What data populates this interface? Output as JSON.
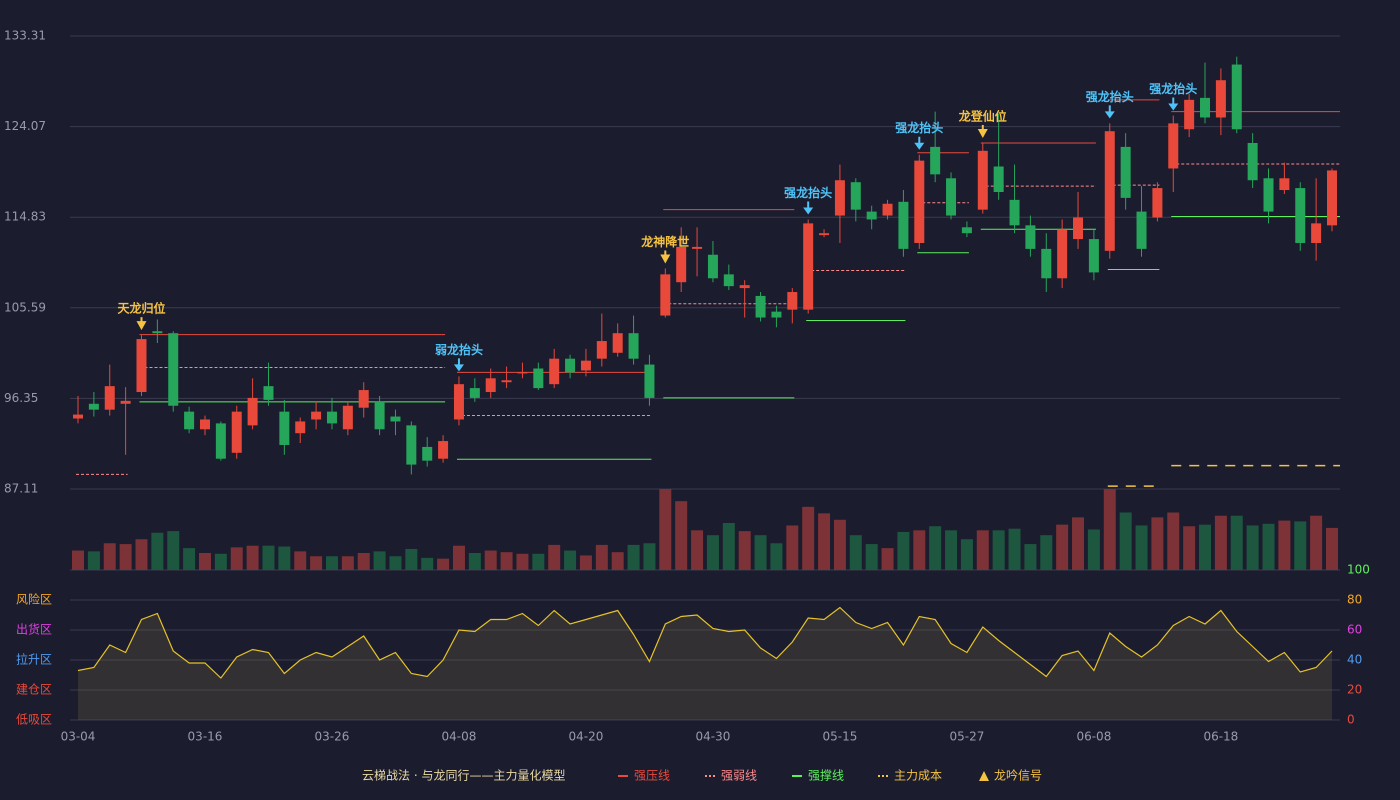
{
  "chart_data": {
    "type": "candlestick",
    "categories": [
      "03-04",
      null,
      null,
      null,
      null,
      null,
      null,
      null,
      "03-16",
      null,
      null,
      null,
      null,
      null,
      null,
      null,
      "03-26",
      null,
      null,
      null,
      null,
      null,
      null,
      null,
      "04-08",
      null,
      null,
      null,
      null,
      null,
      null,
      null,
      "04-20",
      null,
      null,
      null,
      null,
      null,
      null,
      null,
      "04-30",
      null,
      null,
      null,
      null,
      null,
      null,
      null,
      "05-15",
      null,
      null,
      null,
      null,
      null,
      null,
      null,
      "05-27",
      null,
      null,
      null,
      null,
      null,
      null,
      null,
      "06-08",
      null,
      null,
      null,
      null,
      null,
      null,
      null,
      "06-18",
      null,
      null,
      null,
      null,
      null,
      null,
      null
    ],
    "open": [
      94.3,
      95.8,
      95.2,
      95.8,
      97,
      103.2,
      103,
      95,
      93.2,
      93.8,
      90.8,
      93.6,
      97.6,
      95,
      92.8,
      94.2,
      95,
      93.2,
      95.4,
      96,
      94.5,
      93.6,
      91.4,
      90.2,
      94.2,
      97.4,
      97,
      98,
      98.9,
      99.4,
      97.8,
      100.4,
      99.2,
      100.4,
      101,
      103,
      99.8,
      104.8,
      108.2,
      111.6,
      111,
      109,
      107.6,
      106.8,
      105.2,
      105.4,
      105.4,
      113,
      115,
      118.4,
      115.4,
      115,
      116.4,
      112.2,
      122,
      118.8,
      113.8,
      115.6,
      120,
      116.6,
      114,
      111.6,
      108.6,
      112.6,
      112.6,
      111.4,
      122,
      115.4,
      114.8,
      119.8,
      123.8,
      127,
      125,
      130.4,
      122.4,
      118.8,
      117.6,
      117.8,
      112.2,
      114
    ],
    "high": [
      96.6,
      97,
      99.8,
      97.5,
      102.8,
      104.4,
      103.2,
      95.5,
      94.6,
      94,
      95.6,
      98.4,
      100,
      96.2,
      94.4,
      96,
      96.4,
      96,
      98,
      96.6,
      95.2,
      94,
      92.4,
      92.6,
      98.6,
      98.4,
      99.4,
      99.6,
      100,
      100,
      101.4,
      100.8,
      101.4,
      105,
      104,
      104.8,
      100.8,
      109.6,
      113.8,
      113.8,
      112.4,
      110,
      108.4,
      107.2,
      105.8,
      107.6,
      114.6,
      113.6,
      120.2,
      118.8,
      116,
      116.6,
      117.6,
      121.2,
      125.6,
      119.4,
      114.4,
      122.4,
      125.4,
      120.2,
      115,
      113.2,
      114.6,
      117.4,
      113.6,
      124.4,
      123.4,
      118,
      118.4,
      125.2,
      127.4,
      130.6,
      130,
      131.2,
      123.4,
      119.8,
      120.4,
      118.4,
      118.8,
      119.8
    ],
    "low": [
      93.8,
      94.5,
      94.6,
      90.6,
      96.6,
      102,
      95,
      92.8,
      92.6,
      90,
      90.2,
      93.2,
      95.6,
      90.6,
      91.8,
      93.2,
      93.2,
      92.6,
      94.4,
      92.6,
      92.6,
      88.6,
      89.4,
      89.8,
      93.6,
      96,
      96.4,
      97.4,
      98.4,
      97.2,
      97.4,
      98.4,
      98.6,
      99.6,
      100.6,
      99.8,
      95.6,
      104.6,
      107.2,
      108.8,
      108.2,
      107.4,
      104.6,
      104.2,
      103.6,
      104,
      105,
      112.8,
      112.2,
      114.4,
      113.6,
      114.6,
      110.8,
      111.6,
      118.4,
      114.6,
      112.8,
      115.2,
      116.6,
      113.2,
      110.8,
      107.2,
      107.6,
      111.6,
      108.4,
      110.6,
      115.6,
      110.8,
      114.4,
      117.4,
      123,
      124.4,
      123.2,
      123.4,
      117.8,
      114.2,
      117.2,
      111.4,
      110.4,
      113.4
    ],
    "close": [
      94.7,
      95.2,
      97.6,
      96.1,
      102.4,
      103,
      95.6,
      93.2,
      94.2,
      90.2,
      95,
      96.4,
      96.2,
      91.6,
      94,
      95,
      93.8,
      95.6,
      97.2,
      93.2,
      94,
      89.6,
      90,
      92,
      97.8,
      96.4,
      98.4,
      98.2,
      99,
      97.4,
      100.4,
      99,
      100.2,
      102.2,
      103,
      100.4,
      96.4,
      109,
      111.8,
      111.8,
      108.6,
      107.8,
      107.9,
      104.6,
      104.6,
      107.2,
      114.2,
      113.2,
      118.6,
      115.6,
      114.6,
      116.2,
      111.6,
      120.6,
      119.2,
      115,
      113.2,
      121.6,
      117.4,
      114,
      111.6,
      108.6,
      113.6,
      114.8,
      109.2,
      123.6,
      116.8,
      111.6,
      117.8,
      124.4,
      126.8,
      125,
      128.8,
      123.8,
      118.6,
      115.4,
      118.8,
      112.2,
      114.2,
      119.6
    ],
    "up_color": "#e8493a",
    "down_color": "#26a65b",
    "ylim": [
      87.11,
      133.31
    ],
    "yticks": [
      87.11,
      96.35,
      105.59,
      114.83,
      124.07,
      133.31
    ],
    "volume": {
      "vlim": [
        0,
        100
      ],
      "up_color": "#7c3236",
      "down_color": "#1e5740",
      "values": [
        24,
        23,
        33,
        32,
        38,
        46,
        48,
        27,
        21,
        20,
        28,
        30,
        30,
        29,
        23,
        17,
        17,
        17,
        21,
        23,
        17,
        26,
        15,
        14,
        30,
        21,
        24,
        22,
        20,
        20,
        31,
        24,
        18,
        31,
        22,
        31,
        33,
        100,
        85,
        49,
        43,
        58,
        48,
        43,
        33,
        55,
        78,
        70,
        62,
        43,
        32,
        27,
        47,
        49,
        54,
        49,
        38,
        49,
        49,
        51,
        32,
        43,
        56,
        65,
        50,
        100,
        71,
        55,
        65,
        71,
        54,
        56,
        67,
        67,
        55,
        57,
        61,
        60,
        67,
        52
      ]
    },
    "indicator": {
      "color": "#e6c229",
      "y2lim": [
        0,
        100
      ],
      "y2ticks": [
        0,
        20,
        40,
        60,
        80,
        100
      ],
      "y2tick_colors": [
        "#e84a3c",
        "#e84a3c",
        "#4f9cf0",
        "#e040e0",
        "#f5a623",
        "#5df05d"
      ],
      "zones": [
        {
          "value": 80,
          "label": "风险区",
          "color": "#f5a623"
        },
        {
          "value": 60,
          "label": "出货区",
          "color": "#e040e0"
        },
        {
          "value": 40,
          "label": "拉升区",
          "color": "#4f9cf0"
        },
        {
          "value": 20,
          "label": "建仓区",
          "color": "#e84a3c"
        },
        {
          "value": 0,
          "label": "低吸区",
          "color": "#e84a3c"
        }
      ],
      "values": [
        33,
        35,
        50,
        45,
        67,
        71,
        46,
        38,
        38,
        28,
        42,
        47,
        45,
        31,
        40,
        45,
        42,
        49,
        56,
        40,
        45,
        31,
        29,
        40,
        60,
        59,
        67,
        67,
        71,
        63,
        73,
        64,
        67,
        70,
        73,
        57,
        39,
        64,
        69,
        70,
        61,
        59,
        60,
        48,
        41,
        52,
        68,
        67,
        75,
        65,
        61,
        65,
        50,
        69,
        67,
        51,
        45,
        62,
        53,
        45,
        37,
        29,
        43,
        46,
        33,
        58,
        49,
        42,
        50,
        63,
        69,
        64,
        73,
        59,
        49,
        39,
        45,
        32,
        35,
        46
      ]
    },
    "levels": [
      {
        "name": "强压线",
        "color": "#e84a3c",
        "dashed": false,
        "segments": [
          {
            "from": 4,
            "to": 23,
            "value": 102.85
          },
          {
            "from": 24,
            "to": 36,
            "value": 99.0
          },
          {
            "from": 37,
            "to": 45,
            "value": 115.6
          },
          {
            "from": 53,
            "to": 56,
            "value": 121.4
          },
          {
            "from": 57,
            "to": 64,
            "value": 122.4
          },
          {
            "from": 65,
            "to": 68,
            "value": 126.8
          },
          {
            "from": 69,
            "to": 79,
            "value": 125.6
          }
        ]
      },
      {
        "name": "强弱线",
        "color": "#ff8a8a",
        "dashed": true,
        "segments": [
          {
            "from": 0,
            "to": 3,
            "value": 88.6
          },
          {
            "from": 4,
            "to": 23,
            "value": 99.5
          },
          {
            "from": 24,
            "to": 36,
            "value": 94.6
          },
          {
            "from": 37,
            "to": 45,
            "value": 106.0
          },
          {
            "from": 46,
            "to": 52,
            "value": 109.4
          },
          {
            "from": 53,
            "to": 56,
            "value": 116.3
          },
          {
            "from": 57,
            "to": 64,
            "value": 118.0
          },
          {
            "from": 65,
            "to": 68,
            "value": 118.1
          },
          {
            "from": 69,
            "to": 79,
            "value": 120.25
          }
        ]
      },
      {
        "name": "强撑线",
        "color": "#5df05d",
        "dashed": false,
        "segments": [
          {
            "from": 4,
            "to": 23,
            "value": 96.0
          },
          {
            "from": 24,
            "to": 36,
            "value": 90.15
          },
          {
            "from": 37,
            "to": 45,
            "value": 96.4
          },
          {
            "from": 46,
            "to": 52,
            "value": 104.3
          },
          {
            "from": 53,
            "to": 56,
            "value": 111.2
          },
          {
            "from": 57,
            "to": 64,
            "value": 113.6
          },
          {
            "from": 65,
            "to": 68,
            "value": 109.5
          },
          {
            "from": 69,
            "to": 79,
            "value": 114.9
          }
        ]
      },
      {
        "name": "主力成本",
        "color": "#f5c242",
        "dashed": true,
        "segments": [
          {
            "from": 65,
            "to": 68,
            "value": 87.4
          },
          {
            "from": 69,
            "to": 79,
            "value": 89.5
          }
        ]
      }
    ],
    "signals": [
      {
        "index": 4,
        "text": "天龙归位",
        "kind": "triangle"
      },
      {
        "index": 24,
        "text": "弱龙抬头",
        "kind": "arrow"
      },
      {
        "index": 37,
        "text": "龙神降世",
        "kind": "triangle"
      },
      {
        "index": 46,
        "text": "强龙抬头",
        "kind": "arrow"
      },
      {
        "index": 53,
        "text": "强龙抬头",
        "kind": "arrow"
      },
      {
        "index": 57,
        "text": "龙登仙位",
        "kind": "triangle"
      },
      {
        "index": 65,
        "text": "强龙抬头",
        "kind": "arrow"
      },
      {
        "index": 69,
        "text": "强龙抬头",
        "kind": "arrow"
      }
    ],
    "signal_colors": {
      "triangle": "#f5c242",
      "arrow": "#4fc3f7"
    },
    "legend_title": "云梯战法 · 与龙同行——主力量化模型",
    "signal_legend": "龙吟信号"
  }
}
